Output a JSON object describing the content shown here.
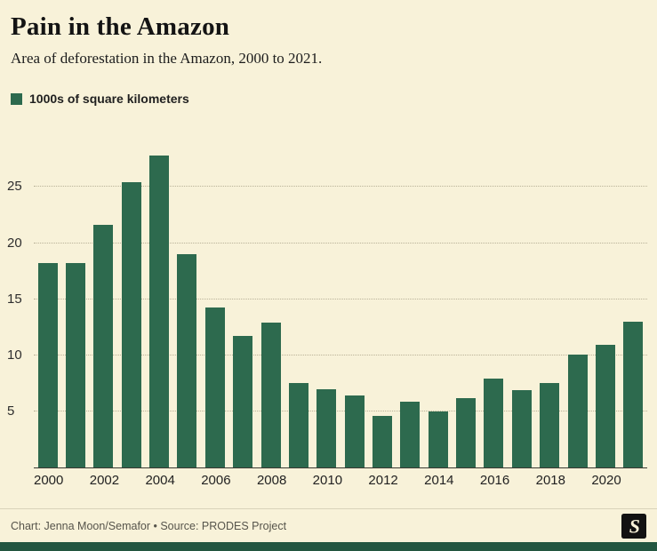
{
  "header": {
    "title": "Pain in the Amazon",
    "subtitle": "Area of deforestation in the Amazon, 2000 to 2021."
  },
  "legend": {
    "label": "1000s of square kilometers",
    "swatch_color": "#2d6a4e"
  },
  "chart_data": {
    "type": "bar",
    "title": "Pain in the Amazon",
    "subtitle": "Area of deforestation in the Amazon, 2000 to 2021.",
    "ylabel": "1000s of square kilometers",
    "xlabel": "",
    "categories": [
      2000,
      2001,
      2002,
      2003,
      2004,
      2005,
      2006,
      2007,
      2008,
      2009,
      2010,
      2011,
      2012,
      2013,
      2014,
      2015,
      2016,
      2017,
      2018,
      2019,
      2020,
      2021
    ],
    "values": [
      18.2,
      18.2,
      21.6,
      25.4,
      27.8,
      19.0,
      14.3,
      11.7,
      12.9,
      7.5,
      7.0,
      6.4,
      4.6,
      5.9,
      5.0,
      6.2,
      7.9,
      6.9,
      7.5,
      10.1,
      10.9,
      13.0
    ],
    "ylim": [
      0,
      29
    ],
    "yticks": [
      5,
      10,
      15,
      20,
      25
    ],
    "x_tick_labels": [
      "2000",
      "2002",
      "2004",
      "2006",
      "2008",
      "2010",
      "2012",
      "2014",
      "2016",
      "2018",
      "2020"
    ],
    "grid": "horizontal-dotted",
    "legend_position": "top-left",
    "bar_color": "#2d6a4e"
  },
  "footer": {
    "credit": "Chart: Jenna Moon/Semafor • Source: PRODES Project",
    "logo": "semafor-logo",
    "logo_letter": "S"
  },
  "colors": {
    "background": "#f8f2d9",
    "bar": "#2d6a4e",
    "bottom_strip": "#235640",
    "gridline": "#b9b298",
    "footer_text": "#56544b"
  }
}
